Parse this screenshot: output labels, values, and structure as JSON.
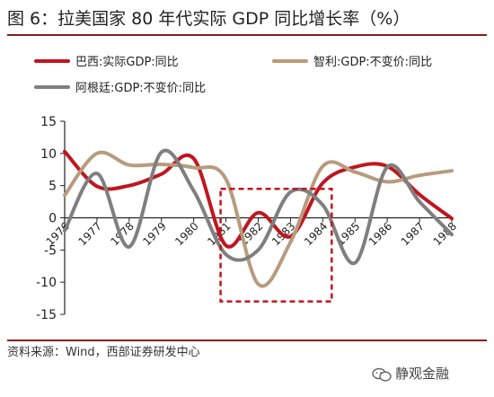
{
  "title": "图 6：拉美国家 80 年代实际 GDP 同比增长率（%）",
  "source": "资料来源：Wind，西部证券研发中心",
  "watermark": "静观金融",
  "chart_data": {
    "type": "line",
    "x": [
      "1976",
      "1977",
      "1978",
      "1979",
      "1980",
      "1981",
      "1982",
      "1983",
      "1984",
      "1985",
      "1986",
      "1987",
      "1988"
    ],
    "ylim": [
      -15,
      15
    ],
    "yticks": [
      -15,
      -10,
      -5,
      0,
      5,
      10,
      15
    ],
    "legend_position": "top",
    "grid": false,
    "series": [
      {
        "name": "巴西:实际GDP:同比",
        "color": "#c0161f",
        "values": [
          10.3,
          4.9,
          5.0,
          6.8,
          9.2,
          -4.3,
          0.8,
          -2.9,
          5.4,
          7.9,
          8.0,
          3.6,
          -0.1
        ]
      },
      {
        "name": "智利:GDP:不变价:同比",
        "color": "#b89b7e",
        "values": [
          3.5,
          10.0,
          8.2,
          8.3,
          7.8,
          6.0,
          -10.3,
          -3.8,
          8.0,
          7.1,
          5.6,
          6.6,
          7.3
        ]
      },
      {
        "name": "阿根廷:GDP:不变价:同比",
        "color": "#7f7f7f",
        "values": [
          -2.0,
          6.9,
          -4.5,
          10.2,
          4.2,
          -5.7,
          -5.0,
          4.0,
          2.0,
          -7.0,
          7.9,
          2.5,
          -2.6
        ]
      }
    ],
    "annotation": {
      "type": "dashed-box",
      "color": "#c0161f",
      "x_from": "1981",
      "x_to": "1984",
      "y_from": -13,
      "y_to": 4.5
    }
  }
}
